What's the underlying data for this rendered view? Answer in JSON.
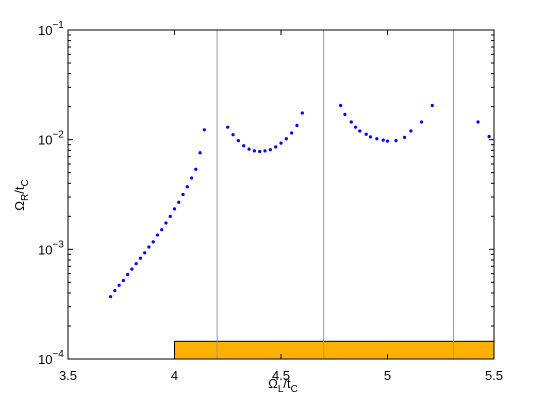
{
  "chart_data": {
    "type": "scatter",
    "log_y": true,
    "xlim": [
      3.5,
      5.5
    ],
    "ylim": [
      0.0001,
      0.1
    ],
    "xticks": [
      3.5,
      4,
      4.5,
      5,
      5.5
    ],
    "yticks": [
      {
        "value": 0.0001,
        "label": "10",
        "exponent": "−4"
      },
      {
        "value": 0.001,
        "label": "10",
        "exponent": "−3"
      },
      {
        "value": 0.01,
        "label": "10",
        "exponent": "−2"
      },
      {
        "value": 0.1,
        "label": "10",
        "exponent": "−1"
      }
    ],
    "xlabel": {
      "symbol": "Ω",
      "sub": "L",
      "rest": "/t",
      "sub2": "C"
    },
    "ylabel": {
      "symbol": "Ω",
      "sub": "R",
      "rest": "/t",
      "sub2": "C"
    },
    "vlines": [
      4.2,
      4.7,
      5.31
    ],
    "vline_color": "#999999",
    "band": {
      "x": [
        4,
        5.5
      ],
      "y": [
        0.0001,
        0.000145
      ],
      "color": "#ffb000"
    },
    "series": [
      {
        "color": "#0000ff",
        "x": [
          3.7,
          3.72,
          3.74,
          3.76,
          3.78,
          3.8,
          3.82,
          3.84,
          3.86,
          3.88,
          3.9,
          3.92,
          3.94,
          3.96,
          3.98,
          4.0,
          4.02,
          4.04,
          4.06,
          4.08,
          4.1,
          4.12,
          4.14,
          4.25,
          4.275,
          4.3,
          4.325,
          4.35,
          4.375,
          4.4,
          4.425,
          4.45,
          4.475,
          4.5,
          4.525,
          4.55,
          4.575,
          4.6,
          4.78,
          4.8,
          4.83,
          4.85,
          4.87,
          4.9,
          4.92,
          4.95,
          4.98,
          5.0,
          5.04,
          5.08,
          5.11,
          5.16,
          5.21,
          5.425,
          5.477
        ],
        "values": [
          0.00037,
          0.00042,
          0.00047,
          0.00052,
          0.00059,
          0.00066,
          0.00074,
          0.00083,
          0.00093,
          0.00105,
          0.00117,
          0.00135,
          0.00151,
          0.00174,
          0.002,
          0.00234,
          0.00269,
          0.00316,
          0.00372,
          0.00447,
          0.00537,
          0.0076,
          0.0123,
          0.013,
          0.0111,
          0.0098,
          0.0088,
          0.0082,
          0.0079,
          0.0078,
          0.0079,
          0.0081,
          0.0086,
          0.0093,
          0.0102,
          0.0115,
          0.0135,
          0.0175,
          0.0205,
          0.017,
          0.0145,
          0.013,
          0.012,
          0.0112,
          0.0106,
          0.0102,
          0.0099,
          0.0097,
          0.0098,
          0.0105,
          0.012,
          0.0145,
          0.0205,
          0.0145,
          0.0107
        ]
      }
    ]
  }
}
